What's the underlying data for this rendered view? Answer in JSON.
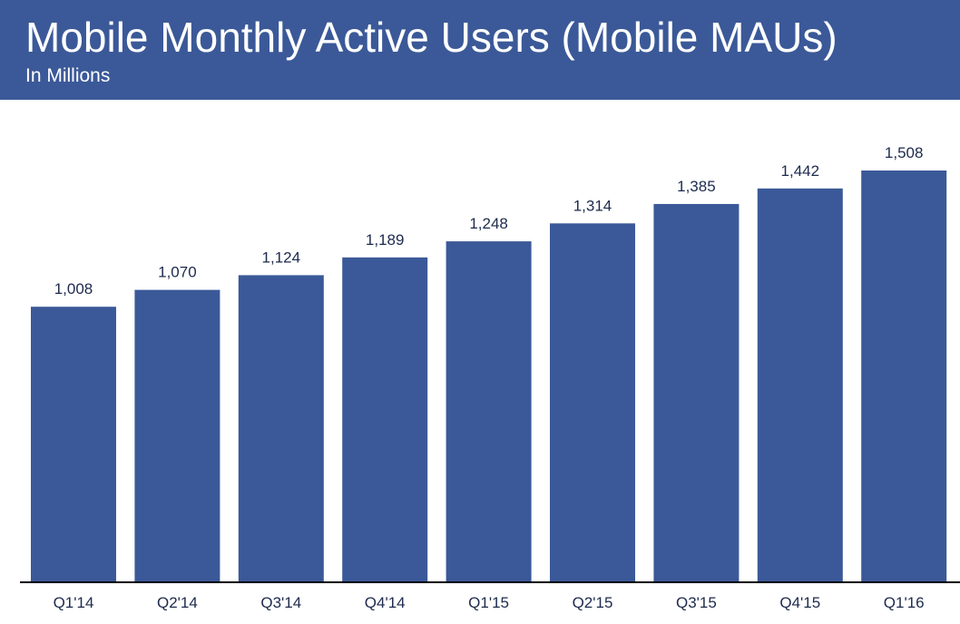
{
  "header": {
    "title": "Mobile Monthly Active Users (Mobile MAUs)",
    "subtitle": "In Millions"
  },
  "colors": {
    "header_bg": "#3b5998",
    "bar": "#3b5998",
    "label_text": "#1d2a4d"
  },
  "chart_data": {
    "type": "bar",
    "title": "Mobile Monthly Active Users (Mobile MAUs)",
    "subtitle": "In Millions",
    "categories": [
      "Q1'14",
      "Q2'14",
      "Q3'14",
      "Q4'14",
      "Q1'15",
      "Q2'15",
      "Q3'15",
      "Q4'15",
      "Q1'16"
    ],
    "values": [
      1008,
      1070,
      1124,
      1189,
      1248,
      1314,
      1385,
      1442,
      1508
    ],
    "value_labels": [
      "1,008",
      "1,070",
      "1,124",
      "1,189",
      "1,248",
      "1,314",
      "1,385",
      "1,442",
      "1,508"
    ],
    "xlabel": "",
    "ylabel": "",
    "ylim": [
      0,
      1508
    ],
    "grid": false,
    "legend": "none"
  }
}
